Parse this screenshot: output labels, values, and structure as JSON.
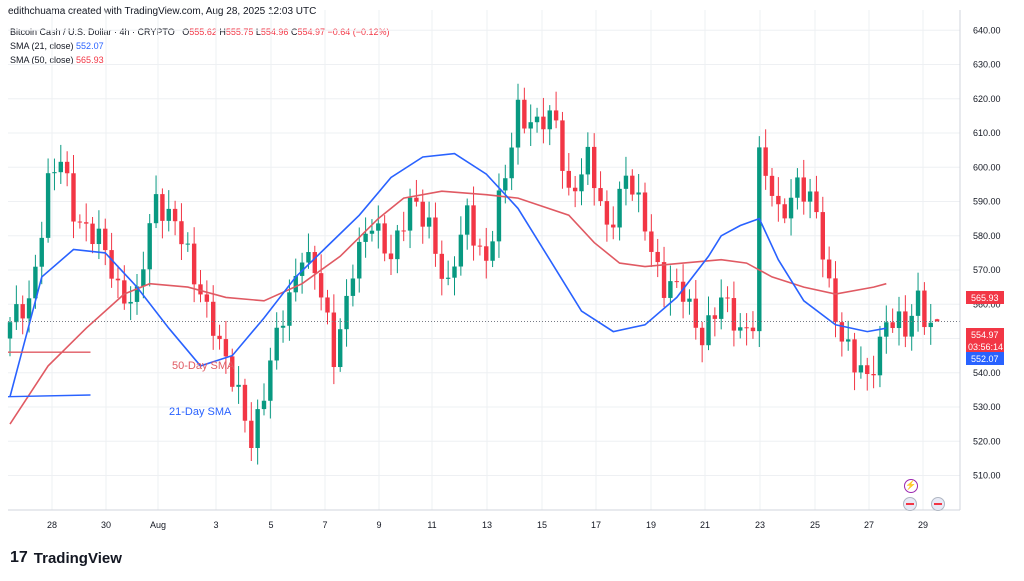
{
  "header": {
    "text": "edithchuama created with TradingView.com, Aug 28, 2025 12:03 UTC"
  },
  "legend": {
    "symbol": "Bitcoin Cash / U.S. Dollar · 4h · CRYPTO",
    "o_label": "O",
    "o_value": "555.62",
    "h_label": "H",
    "h_value": "555.75",
    "l_label": "L",
    "l_value": "554.96",
    "c_label": "C",
    "c_value": "554.97",
    "change": "−0.64 (−0.12%)",
    "sma21_label": "SMA (21, close)",
    "sma21_value": "552.07",
    "sma50_label": "SMA (50, close)",
    "sma50_value": "565.93"
  },
  "annotations": {
    "sma50_label": "50-Day SMA",
    "sma21_label": "21-Day SMA"
  },
  "badges": {
    "sma50": "565.93",
    "price": "554.97",
    "countdown": "03:56:14",
    "sma21": "552.07"
  },
  "footer": {
    "brand": "TradingView",
    "mark": "17"
  },
  "colors": {
    "up": "#089981",
    "down": "#f23645",
    "sma21": "#2962ff",
    "sma50": "#e05a63",
    "grid": "#eef0f3"
  },
  "chart_data": {
    "type": "candlestick",
    "timeframe": "4h",
    "ylim": [
      505,
      645
    ],
    "y_ticks": [
      510,
      520,
      530,
      540,
      550,
      560,
      570,
      580,
      590,
      600,
      610,
      620,
      630,
      640
    ],
    "x_ticks": [
      "28",
      "30",
      "Aug",
      "3",
      "5",
      "7",
      "9",
      "11",
      "13",
      "15",
      "17",
      "19",
      "21",
      "23",
      "25",
      "27",
      "29"
    ],
    "anchors": [
      [
        0,
        553
      ],
      [
        3,
        561
      ],
      [
        6,
        595
      ],
      [
        8,
        601
      ],
      [
        10,
        588
      ],
      [
        14,
        578
      ],
      [
        17,
        565
      ],
      [
        20,
        562
      ],
      [
        23,
        590
      ],
      [
        26,
        586
      ],
      [
        29,
        566
      ],
      [
        32,
        556
      ],
      [
        35,
        537
      ],
      [
        38,
        521
      ],
      [
        41,
        543
      ],
      [
        44,
        561
      ],
      [
        46,
        577
      ],
      [
        48,
        570
      ],
      [
        51,
        544
      ],
      [
        54,
        572
      ],
      [
        57,
        582
      ],
      [
        60,
        576
      ],
      [
        63,
        588
      ],
      [
        66,
        584
      ],
      [
        69,
        564
      ],
      [
        72,
        586
      ],
      [
        75,
        573
      ],
      [
        78,
        596
      ],
      [
        80,
        618
      ],
      [
        83,
        612
      ],
      [
        86,
        613
      ],
      [
        88,
        593
      ],
      [
        91,
        601
      ],
      [
        94,
        583
      ],
      [
        97,
        597
      ],
      [
        100,
        583
      ],
      [
        103,
        566
      ],
      [
        106,
        562
      ],
      [
        109,
        552
      ],
      [
        112,
        560
      ],
      [
        115,
        553
      ],
      [
        117,
        556
      ],
      [
        118,
        602
      ],
      [
        121,
        586
      ],
      [
        124,
        596
      ],
      [
        127,
        585
      ],
      [
        129,
        566
      ],
      [
        131,
        551
      ],
      [
        133,
        541
      ],
      [
        135,
        538
      ],
      [
        138,
        556
      ],
      [
        141,
        551
      ],
      [
        143,
        563
      ],
      [
        145,
        554
      ],
      [
        146,
        555
      ]
    ],
    "last_candle": {
      "open": 555.62,
      "high": 555.75,
      "low": 554.96,
      "close": 554.97
    },
    "series": [
      {
        "name": "SMA (21, close)",
        "values": [
          [
            0,
            533
          ],
          [
            5,
            568
          ],
          [
            10,
            576
          ],
          [
            15,
            575
          ],
          [
            20,
            565
          ],
          [
            25,
            553
          ],
          [
            30,
            542
          ],
          [
            35,
            545
          ],
          [
            40,
            556
          ],
          [
            45,
            568
          ],
          [
            50,
            577
          ],
          [
            55,
            586
          ],
          [
            60,
            597
          ],
          [
            65,
            603
          ],
          [
            70,
            604
          ],
          [
            75,
            598
          ],
          [
            80,
            588
          ],
          [
            85,
            573
          ],
          [
            90,
            558
          ],
          [
            95,
            552
          ],
          [
            100,
            554
          ],
          [
            105,
            562
          ],
          [
            110,
            574
          ],
          [
            112,
            580
          ],
          [
            115,
            583
          ],
          [
            118,
            585
          ],
          [
            121,
            573
          ],
          [
            125,
            561
          ],
          [
            130,
            554
          ],
          [
            135,
            552
          ],
          [
            138,
            553
          ]
        ]
      },
      {
        "name": "SMA (50, close)",
        "values": [
          [
            0,
            525
          ],
          [
            6,
            542
          ],
          [
            12,
            553
          ],
          [
            18,
            563
          ],
          [
            22,
            566
          ],
          [
            28,
            565
          ],
          [
            34,
            562
          ],
          [
            40,
            561
          ],
          [
            46,
            566
          ],
          [
            52,
            574
          ],
          [
            58,
            585
          ],
          [
            62,
            591
          ],
          [
            68,
            593
          ],
          [
            75,
            592
          ],
          [
            80,
            591
          ],
          [
            88,
            586
          ],
          [
            92,
            578
          ],
          [
            96,
            572
          ],
          [
            100,
            571
          ],
          [
            106,
            572
          ],
          [
            112,
            573
          ],
          [
            116,
            572
          ],
          [
            120,
            568
          ],
          [
            125,
            565
          ],
          [
            130,
            563
          ],
          [
            136,
            565
          ],
          [
            138,
            566
          ]
        ]
      }
    ],
    "lines_left": [
      {
        "name": "50-Day SMA",
        "values": [
          [
            0,
            546
          ],
          [
            25,
            546
          ]
        ]
      },
      {
        "name": "21-Day SMA",
        "values": [
          [
            0,
            533
          ],
          [
            25,
            533.5
          ]
        ]
      }
    ]
  }
}
